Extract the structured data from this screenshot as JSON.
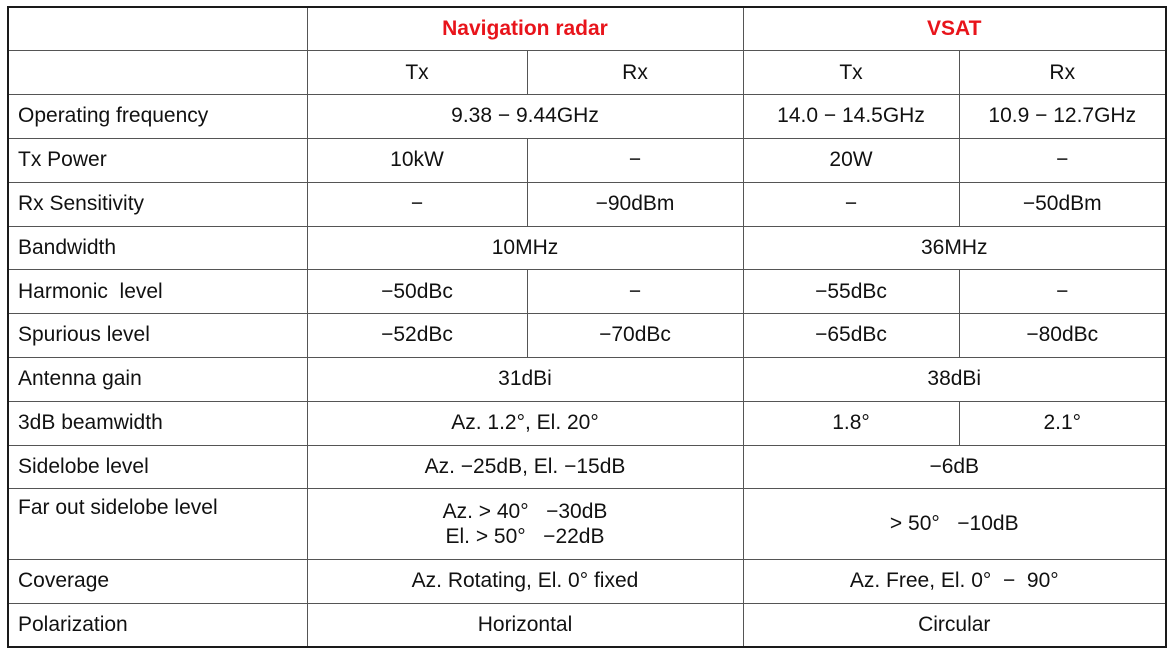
{
  "header": {
    "group_nav": "Navigation radar",
    "group_vsat": "VSAT",
    "tx": "Tx",
    "rx": "Rx",
    "accent_color": "#e8141b"
  },
  "rows": {
    "operating_frequency": {
      "label": "Operating frequency",
      "nav": "9.38 − 9.44GHz",
      "vsat_tx": "14.0 − 14.5GHz",
      "vsat_rx": "10.9 − 12.7GHz"
    },
    "tx_power": {
      "label": "Tx Power",
      "nav_tx": "10kW",
      "nav_rx": "−",
      "vsat_tx": "20W",
      "vsat_rx": "−"
    },
    "rx_sensitivity": {
      "label": "Rx Sensitivity",
      "nav_tx": "−",
      "nav_rx": "−90dBm",
      "vsat_tx": "−",
      "vsat_rx": "−50dBm"
    },
    "bandwidth": {
      "label": "Bandwidth",
      "nav": "10MHz",
      "vsat": "36MHz"
    },
    "harmonic_level": {
      "label": "Harmonic  level",
      "nav_tx": "−50dBc",
      "nav_rx": "−",
      "vsat_tx": "−55dBc",
      "vsat_rx": "−"
    },
    "spurious_level": {
      "label": "Spurious level",
      "nav_tx": "−52dBc",
      "nav_rx": "−70dBc",
      "vsat_tx": "−65dBc",
      "vsat_rx": "−80dBc"
    },
    "antenna_gain": {
      "label": "Antenna gain",
      "nav": "31dBi",
      "vsat": "38dBi"
    },
    "beamwidth_3db": {
      "label": "3dB beamwidth",
      "nav": "Az. 1.2°, El. 20°",
      "vsat_tx": "1.8°",
      "vsat_rx": "2.1°"
    },
    "sidelobe_level": {
      "label": "Sidelobe level",
      "nav": "Az. −25dB, El. −15dB",
      "vsat": "−6dB"
    },
    "far_out_sidelobe_level": {
      "label": "Far out sidelobe level",
      "nav_line1": "Az. > 40°   −30dB",
      "nav_line2": "El. > 50°   −22dB",
      "vsat": "> 50°   −10dB"
    },
    "coverage": {
      "label": "Coverage",
      "nav": "Az. Rotating, El. 0° fixed",
      "vsat": "Az. Free, El. 0°  −  90°"
    },
    "polarization": {
      "label": "Polarization",
      "nav": "Horizontal",
      "vsat": "Circular"
    }
  }
}
